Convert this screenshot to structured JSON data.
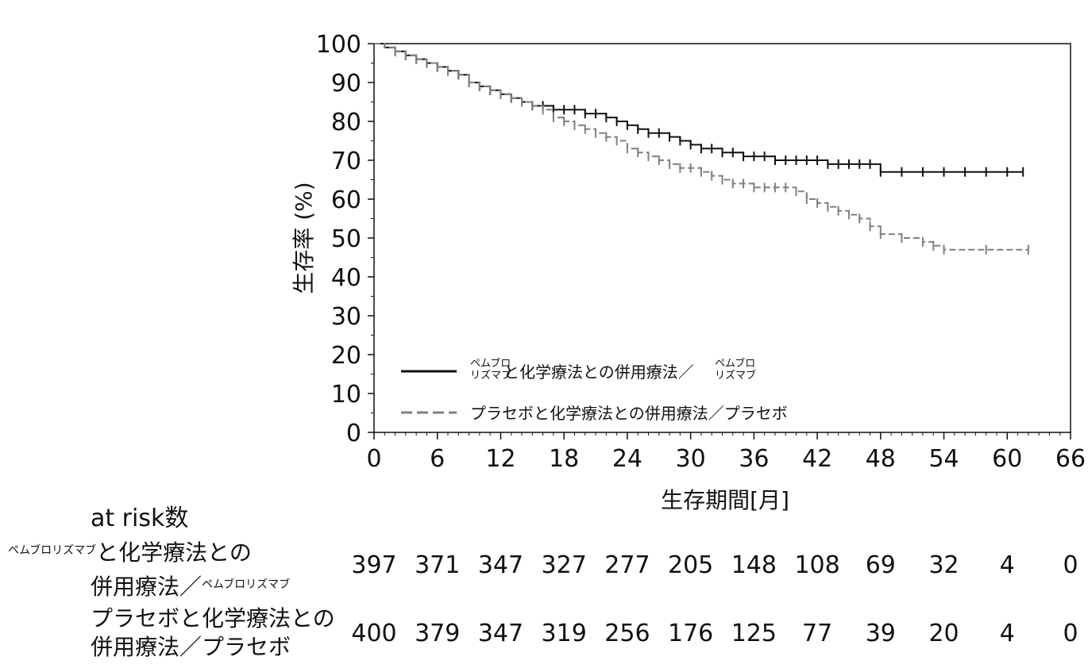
{
  "chart_data": {
    "type": "line",
    "xlabel": "生存期間[月]",
    "ylabel": "生存率 (%)",
    "xlim": [
      0,
      66
    ],
    "ylim": [
      0,
      100
    ],
    "xticks": [
      0,
      6,
      12,
      18,
      24,
      30,
      36,
      42,
      48,
      54,
      60,
      66
    ],
    "yticks": [
      0,
      10,
      20,
      30,
      40,
      50,
      60,
      70,
      80,
      90,
      100
    ],
    "grid": false,
    "legend_position": "bottom-left",
    "series": [
      {
        "name_small": "ペムブロ リズマブ",
        "name_main": "と化学療法との併用療法／",
        "name_small_end": "ペムブロ リズマブ",
        "style": "solid",
        "color": "#111111",
        "x": [
          0,
          1,
          2,
          3,
          4,
          5,
          6,
          7,
          8,
          9,
          10,
          11,
          12,
          13,
          14,
          15,
          16,
          17,
          18,
          19,
          20,
          21,
          22,
          23,
          24,
          25,
          26,
          27,
          28,
          29,
          30,
          31,
          32,
          33,
          34,
          35,
          36,
          37,
          38,
          39,
          40,
          41,
          42,
          43,
          44,
          45,
          46,
          47,
          48,
          50,
          52,
          54,
          56,
          58,
          60,
          61.5
        ],
        "y": [
          100,
          99,
          98,
          97,
          96,
          95,
          94,
          93,
          92,
          90,
          89,
          88,
          87,
          86,
          85,
          84,
          84,
          83,
          83,
          83,
          82,
          82,
          81,
          80,
          79,
          78,
          77,
          77,
          76,
          75,
          74,
          73,
          73,
          72,
          72,
          71,
          71,
          71,
          70,
          70,
          70,
          70,
          70,
          69,
          69,
          69,
          69,
          69,
          67,
          67,
          67,
          67,
          67,
          67,
          67,
          67
        ]
      },
      {
        "name": "プラセボと化学療法との併用療法／プラセボ",
        "style": "dashed",
        "color": "#808080",
        "x": [
          0,
          1,
          2,
          3,
          4,
          5,
          6,
          7,
          8,
          9,
          10,
          11,
          12,
          13,
          14,
          15,
          16,
          17,
          18,
          19,
          20,
          21,
          22,
          23,
          24,
          25,
          26,
          27,
          28,
          29,
          30,
          31,
          32,
          33,
          34,
          35,
          36,
          37,
          38,
          39,
          40,
          41,
          42,
          43,
          44,
          45,
          46,
          47,
          48,
          50,
          52,
          53,
          54,
          58,
          62
        ],
        "y": [
          100,
          99,
          98,
          97,
          96,
          95,
          94,
          93,
          92,
          90,
          89,
          88,
          87,
          86,
          85,
          84,
          83,
          81,
          80,
          79,
          78,
          77,
          76,
          75,
          73,
          72,
          71,
          70,
          69,
          68,
          68,
          67,
          66,
          65,
          64,
          64,
          63,
          63,
          63,
          63,
          62,
          60,
          59,
          58,
          57,
          56,
          55,
          53,
          51,
          50,
          49,
          48,
          47,
          47,
          47
        ]
      }
    ]
  },
  "risk_table": {
    "header": "at risk数",
    "times": [
      0,
      6,
      12,
      18,
      24,
      30,
      36,
      42,
      48,
      54,
      60,
      66
    ],
    "rows": [
      {
        "label_small_prefix": "ペムブロリズマブ",
        "label_line1": "と化学療法との",
        "label_line2": "併用療法／",
        "label_small_suffix": "ペムブロリズマブ",
        "values": [
          "397",
          "371",
          "347",
          "327",
          "277",
          "205",
          "148",
          "108",
          "69",
          "32",
          "4",
          "0"
        ]
      },
      {
        "label_line1": "プラセボと化学療法との",
        "label_line2": "併用療法／プラセボ",
        "values": [
          "400",
          "379",
          "347",
          "319",
          "256",
          "176",
          "125",
          "77",
          "39",
          "20",
          "4",
          "0"
        ]
      }
    ]
  }
}
